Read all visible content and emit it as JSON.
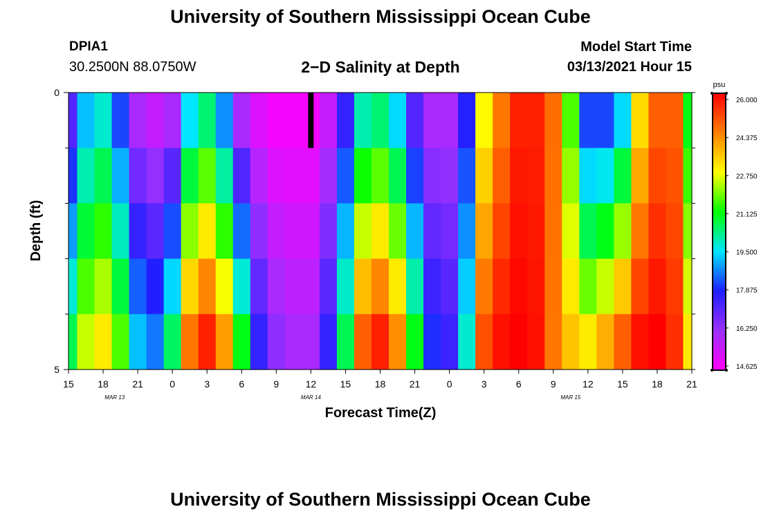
{
  "header": {
    "title": "University of Southern Mississippi Ocean Cube",
    "station": "DPIA1",
    "coords": "30.2500N 88.0750W",
    "subtitle": "2−D Salinity at Depth",
    "start_label": "Model Start Time",
    "start_value": "03/13/2021 Hour 15"
  },
  "footer": {
    "title": "University of Southern Mississippi Ocean Cube"
  },
  "chart_data": {
    "type": "heatmap",
    "xlabel": "Forecast Time(Z)",
    "ylabel": "Depth (ft)",
    "x_tick_labels": [
      "15",
      "18",
      "21",
      "0",
      "3",
      "6",
      "9",
      "12",
      "15",
      "18",
      "21",
      "0",
      "3",
      "6",
      "9",
      "12",
      "15",
      "18",
      "21"
    ],
    "x_forecast_hours": [
      0,
      54
    ],
    "date_labels": [
      {
        "label": "MAR 13",
        "forecast_hour": 4
      },
      {
        "label": "MAR 14",
        "forecast_hour": 21
      },
      {
        "label": "MAR 15",
        "forecast_hour": 43.5
      }
    ],
    "y_tick_labels": [
      "0",
      "5"
    ],
    "ylim": [
      0,
      5
    ],
    "y_minor_ticks": [
      1,
      2,
      3,
      4
    ],
    "depth_levels": 5,
    "current_time_marker_hour": 21,
    "colorbar": {
      "unit": "psu",
      "min": 14.625,
      "max": 26.0,
      "ticks": [
        "26.000",
        "24.375",
        "22.750",
        "21.125",
        "19.500",
        "17.875",
        "16.250",
        "14.625"
      ],
      "colors": [
        "#ff00ff",
        "#9b30ff",
        "#1f1fff",
        "#00e6ff",
        "#00ff00",
        "#ffff00",
        "#ff8000",
        "#ff0000"
      ]
    },
    "salinity_profile": {
      "forecast_hours": [
        0,
        1.5,
        3,
        4.5,
        6,
        7.5,
        9,
        10.5,
        12,
        13.5,
        15,
        16.5,
        18,
        19.5,
        21,
        22.5,
        24,
        25.5,
        27,
        28.5,
        30,
        31.5,
        33,
        34.5,
        36,
        37.5,
        39,
        40.5,
        42,
        43.5,
        45,
        46.5,
        48,
        49.5,
        51,
        52.5,
        54
      ],
      "surface": [
        17.2,
        19.2,
        19.8,
        18.2,
        16.0,
        15.6,
        16.0,
        19.5,
        20.4,
        18.8,
        16.0,
        15.2,
        14.8,
        14.8,
        14.8,
        15.6,
        17.6,
        20.0,
        20.4,
        19.4,
        17.2,
        16.0,
        16.0,
        17.8,
        22.8,
        24.5,
        25.6,
        25.6,
        24.6,
        21.6,
        18.2,
        18.2,
        19.4,
        23.2,
        24.8,
        24.8,
        21.0
      ],
      "bottom": [
        20.6,
        22.4,
        23.0,
        21.6,
        19.2,
        18.6,
        20.5,
        24.5,
        25.6,
        24.0,
        21.0,
        17.6,
        16.4,
        16.0,
        16.0,
        17.6,
        20.6,
        24.8,
        25.6,
        24.2,
        21.0,
        18.0,
        17.5,
        19.8,
        25.0,
        25.8,
        26.0,
        25.8,
        24.5,
        23.5,
        23.0,
        23.8,
        24.8,
        25.8,
        26.0,
        25.4,
        23.0
      ]
    }
  }
}
